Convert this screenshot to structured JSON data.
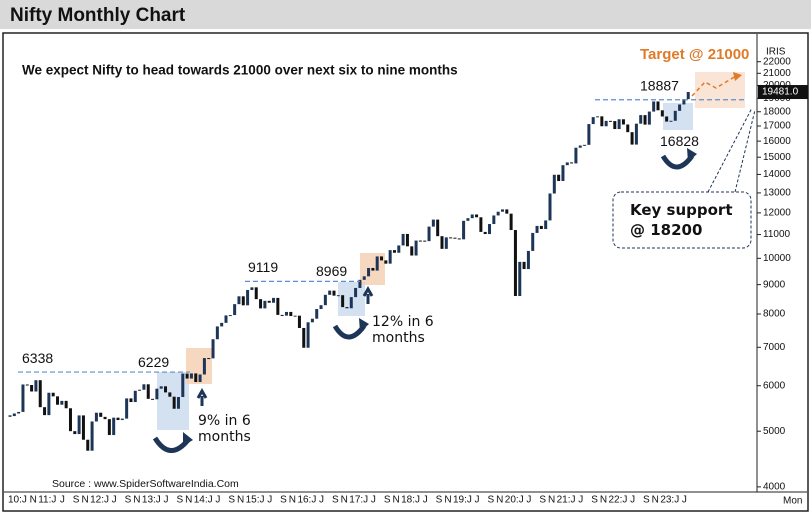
{
  "chart_data": {
    "type": "candlestick",
    "title": "Nifty Monthly Chart",
    "subtitle": "We expect Nifty to head towards 21000 over next six to nine months",
    "source": "Source : www.SpiderSoftwareIndia.Com",
    "indicator": "IRIS",
    "period": "Mon",
    "target": "Target @ 21000",
    "support": "Key support @ 18200",
    "notes": [
      "9% in 6 months",
      "12% in 6 months"
    ],
    "levels": [
      6338,
      6229,
      9119,
      8969,
      18887,
      16828
    ],
    "last_price": {
      "value": 19481,
      "label": "19481.0"
    },
    "log_scale": true,
    "up_color": "#1d3557",
    "down_color": "#111111",
    "ylim": [
      3950,
      24000
    ],
    "yticks": [
      4000,
      5000,
      6000,
      7000,
      8000,
      9000,
      10000,
      11000,
      12000,
      13000,
      14000,
      15000,
      16000,
      17000,
      18000,
      19000,
      20000,
      21000,
      22000
    ],
    "categories": [
      "10:J",
      null,
      null,
      null,
      null,
      "N",
      null,
      "11:J",
      null,
      null,
      null,
      null,
      "J",
      null,
      null,
      "S",
      null,
      "N",
      null,
      "12:J",
      null,
      null,
      null,
      null,
      "J",
      null,
      null,
      "S",
      null,
      "N",
      null,
      "13:J",
      null,
      null,
      null,
      null,
      "J",
      null,
      null,
      "S",
      null,
      "N",
      null,
      "14:J",
      null,
      null,
      null,
      null,
      "J",
      null,
      null,
      "S",
      null,
      "N",
      null,
      "15:J",
      null,
      null,
      null,
      null,
      "J",
      null,
      null,
      "S",
      null,
      "N",
      null,
      "16:J",
      null,
      null,
      null,
      null,
      "J",
      null,
      null,
      "S",
      null,
      "N",
      null,
      "17:J",
      null,
      null,
      null,
      null,
      "J",
      null,
      null,
      "S",
      null,
      "N",
      null,
      "18:J",
      null,
      null,
      null,
      null,
      "J",
      null,
      null,
      "S",
      null,
      "N",
      null,
      "19:J",
      null,
      null,
      null,
      null,
      "J",
      null,
      null,
      "S",
      null,
      "N",
      null,
      "20:J",
      null,
      null,
      null,
      null,
      "J",
      null,
      null,
      "S",
      null,
      "N",
      null,
      "21:J",
      null,
      null,
      null,
      null,
      "J",
      null,
      null,
      "S",
      null,
      "N",
      null,
      "22:J",
      null,
      null,
      null,
      null,
      "J",
      null,
      null,
      "S",
      null,
      "N",
      null,
      "23:J",
      null,
      null,
      null,
      null,
      "J",
      null
    ],
    "values": [
      5313,
      5368,
      5402,
      6030,
      6018,
      5863,
      6135,
      5506,
      5333,
      5834,
      5750,
      5560,
      5647,
      5482,
      5001,
      4943,
      5327,
      4832,
      4624,
      5199,
      5385,
      5296,
      5248,
      4924,
      5279,
      5229,
      5259,
      5703,
      5620,
      5880,
      5905,
      6035,
      5693,
      5683,
      5930,
      5986,
      5842,
      5742,
      5471,
      5735,
      6299,
      6176,
      6304,
      6090,
      6277,
      6704,
      6696,
      7230,
      7611,
      7721,
      7954,
      7965,
      8322,
      8588,
      8283,
      8809,
      8902,
      8491,
      8182,
      8434,
      8369,
      8533,
      7971,
      7949,
      8066,
      7935,
      7946,
      7564,
      6987,
      7738,
      7850,
      8160,
      8288,
      8639,
      8786,
      8611,
      8626,
      8224,
      8186,
      8561,
      8880,
      9174,
      9304,
      9621,
      9521,
      10077,
      9918,
      9789,
      10335,
      10227,
      10531,
      11028,
      10493,
      10114,
      10739,
      10736,
      10714,
      11357,
      11681,
      10930,
      10387,
      10877,
      10863,
      10831,
      10793,
      11624,
      11748,
      11923,
      11789,
      11118,
      11023,
      11474,
      11877,
      12056,
      12168,
      11962,
      11202,
      8598,
      9860,
      9580,
      10302,
      11073,
      11388,
      11248,
      11642,
      12969,
      13982,
      13635,
      14529,
      14691,
      14631,
      15583,
      15722,
      15763,
      17132,
      17618,
      17672,
      16983,
      17354,
      17340,
      16794,
      17465,
      17103,
      16585,
      15780,
      17158,
      17759,
      17094,
      18012,
      18758,
      18105,
      17662,
      17304,
      17360,
      18065,
      18534,
      18934,
      19481
    ]
  }
}
